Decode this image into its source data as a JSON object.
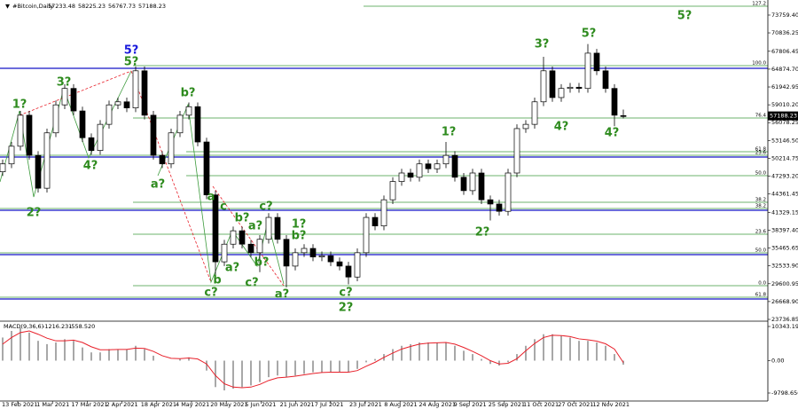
{
  "chart_data": {
    "type": "candlestick",
    "title": "#Bitcoin,Daily",
    "title_marker": "▼",
    "ohlc": [
      [
        48000,
        50000,
        47300,
        49300
      ],
      [
        49300,
        52900,
        48600,
        52200
      ],
      [
        52200,
        58000,
        51500,
        57300
      ],
      [
        57300,
        58000,
        50000,
        50700
      ],
      [
        50700,
        51400,
        44600,
        45300
      ],
      [
        45300,
        55100,
        44600,
        54400
      ],
      [
        54400,
        59700,
        53700,
        59000
      ],
      [
        59000,
        62400,
        58300,
        61700
      ],
      [
        61700,
        62400,
        57300,
        58000
      ],
      [
        58000,
        58700,
        52900,
        53600
      ],
      [
        53600,
        54300,
        50800,
        51500
      ],
      [
        51500,
        56500,
        50800,
        55800
      ],
      [
        55800,
        59700,
        55100,
        59000
      ],
      [
        59000,
        60200,
        58300,
        59500
      ],
      [
        59500,
        60200,
        57800,
        58500
      ],
      [
        58500,
        65300,
        57800,
        64600
      ],
      [
        64600,
        65300,
        56600,
        57300
      ],
      [
        57300,
        58000,
        50000,
        50700
      ],
      [
        50700,
        51400,
        48600,
        49300
      ],
      [
        49300,
        55100,
        48600,
        54400
      ],
      [
        54400,
        58000,
        53700,
        57300
      ],
      [
        57300,
        59400,
        56600,
        58700
      ],
      [
        58700,
        59400,
        52200,
        52900
      ],
      [
        52900,
        53600,
        43500,
        44200
      ],
      [
        44200,
        44900,
        30300,
        33200
      ],
      [
        33200,
        36800,
        32500,
        36100
      ],
      [
        36100,
        39000,
        35400,
        38300
      ],
      [
        38300,
        39000,
        35400,
        36100
      ],
      [
        36100,
        36800,
        34000,
        34700
      ],
      [
        34700,
        37600,
        31500,
        36900
      ],
      [
        36900,
        41200,
        36200,
        40500
      ],
      [
        40500,
        41200,
        36200,
        36900
      ],
      [
        36900,
        37600,
        29000,
        32500
      ],
      [
        32500,
        35400,
        31800,
        34700
      ],
      [
        34700,
        36100,
        34000,
        35400
      ],
      [
        35400,
        36100,
        33300,
        34000
      ],
      [
        34000,
        34900,
        33300,
        34200
      ],
      [
        34200,
        34900,
        32500,
        33200
      ],
      [
        33200,
        33900,
        31800,
        32500
      ],
      [
        32500,
        33200,
        29500,
        30700
      ],
      [
        30700,
        35400,
        30000,
        34700
      ],
      [
        34700,
        41200,
        34000,
        40500
      ],
      [
        40500,
        41200,
        38400,
        39100
      ],
      [
        39100,
        44100,
        38400,
        43400
      ],
      [
        43400,
        47100,
        42700,
        46400
      ],
      [
        46400,
        48500,
        45700,
        47800
      ],
      [
        47800,
        48500,
        46400,
        47100
      ],
      [
        47100,
        50000,
        46400,
        49300
      ],
      [
        49300,
        50000,
        47800,
        48500
      ],
      [
        48500,
        50000,
        47800,
        49300
      ],
      [
        49300,
        52900,
        48600,
        50700
      ],
      [
        50700,
        51400,
        46400,
        47100
      ],
      [
        47100,
        47800,
        44200,
        44900
      ],
      [
        44900,
        48500,
        44200,
        47800
      ],
      [
        47800,
        48500,
        42700,
        43400
      ],
      [
        43400,
        44100,
        40000,
        42700
      ],
      [
        42700,
        43400,
        40800,
        41500
      ],
      [
        41500,
        48500,
        40800,
        47800
      ],
      [
        47800,
        55800,
        47100,
        55100
      ],
      [
        55100,
        56500,
        54400,
        55800
      ],
      [
        55800,
        60200,
        55100,
        59500
      ],
      [
        59500,
        66900,
        58800,
        64600
      ],
      [
        64600,
        65300,
        59500,
        60200
      ],
      [
        60200,
        62400,
        59500,
        61700
      ],
      [
        61700,
        62600,
        61000,
        61900
      ],
      [
        61900,
        62600,
        61000,
        61700
      ],
      [
        61700,
        69000,
        61000,
        67500
      ],
      [
        67500,
        68200,
        63900,
        64600
      ],
      [
        64600,
        65300,
        61000,
        61700
      ],
      [
        61700,
        62400,
        55500,
        57300
      ],
      [
        57233.48,
        58225.23,
        56767.73,
        57188.23
      ]
    ],
    "ylim": [
      23736.85,
      75946
    ],
    "yticks": [
      {
        "value": 73759.4,
        "label": "73759.40"
      },
      70836.25,
      67806.45,
      {
        "value": 64874.7,
        "label": "64874.70"
      },
      61942.95,
      {
        "value": 59010.2,
        "label": "59010.20"
      },
      56078.25,
      {
        "value": 53146.5,
        "label": "53146.50"
      },
      50214.75,
      {
        "value": 47293.2,
        "label": "47293.20"
      },
      44361.45,
      41329.15,
      {
        "value": 38397.4,
        "label": "38397.40"
      },
      35465.65,
      {
        "value": 32533.9,
        "label": "32533.90"
      },
      29600.95,
      {
        "value": 26668.9,
        "label": "26668.90"
      },
      23736.85
    ],
    "date_labels": [
      "13 Feb 2021",
      "1 Mar 2021",
      "17 Mar 2021",
      "2 Apr 2021",
      "18 Apr 2021",
      "4 May 2021",
      "20 May 2021",
      "5 Jun 2021",
      "21 Jun 2021",
      "7 Jul 2021",
      "23 Jul 2021",
      "8 Aug 2021",
      "24 Aug 2021",
      "9 Sep 2021",
      "25 Sep 2021",
      "11 Oct 2021",
      "27 Oct 2021",
      "12 Nov 2021"
    ],
    "fib_labels": [
      "127.2",
      "100.0",
      "76.4",
      "61.8",
      "23.6",
      "50.0",
      "38.2",
      "38.2",
      "23.6",
      "50.0",
      "0.0",
      "61.8"
    ],
    "wave_labels": [
      "1?",
      "2?",
      "3?",
      "4?",
      "5?",
      "5?",
      "b?",
      "a?",
      "a",
      "c",
      "b?",
      "a?",
      "c?",
      "b",
      "a?",
      "b?",
      "c?",
      "c?",
      "a?",
      "1?",
      "b?",
      "c?",
      "2?",
      "1?",
      "2?",
      "3?",
      "4?",
      "5?",
      "4?",
      "5?"
    ],
    "macd": {
      "title": "MACD(9,36,6)",
      "signal_label": "-558.520",
      "histogram": [
        7000,
        9000,
        10000,
        8500,
        6000,
        5000,
        5500,
        6500,
        6000,
        4000,
        2500,
        2500,
        3500,
        3500,
        3500,
        4500,
        3500,
        1500,
        0,
        0,
        500,
        1000,
        0,
        -3000,
        -8000,
        -9000,
        -8500,
        -8000,
        -7500,
        -6500,
        -5000,
        -4500,
        -5000,
        -4500,
        -4000,
        -3500,
        -3500,
        -3500,
        -3500,
        -3500,
        -2500,
        -500,
        500,
        2000,
        3500,
        4500,
        5000,
        5500,
        5500,
        5500,
        5500,
        4500,
        3000,
        2000,
        500,
        -1000,
        -1500,
        -500,
        2000,
        4500,
        6500,
        8000,
        8000,
        7500,
        7000,
        6000,
        6000,
        5500,
        4500,
        2000,
        -1216.231
      ],
      "signal": [
        5000,
        7000,
        8500,
        9000,
        8000,
        6800,
        6000,
        6000,
        6200,
        5500,
        4200,
        3300,
        3300,
        3400,
        3400,
        3800,
        3700,
        2800,
        1500,
        700,
        600,
        800,
        500,
        -1000,
        -4500,
        -7000,
        -8000,
        -8200,
        -8000,
        -7200,
        -6000,
        -5200,
        -5000,
        -4700,
        -4300,
        -3900,
        -3600,
        -3500,
        -3500,
        -3500,
        -3000,
        -1700,
        -500,
        1000,
        2300,
        3500,
        4300,
        5000,
        5300,
        5400,
        5500,
        5000,
        4000,
        2800,
        1500,
        0,
        -1000,
        -800,
        600,
        3000,
        5200,
        7000,
        7700,
        7600,
        7300,
        6600,
        6300,
        5900,
        5100,
        3500,
        -558.52
      ],
      "signal_color": "#e8202a",
      "ylim": [
        -11679,
        11417
      ],
      "yticks": [
        10343.19,
        {
          "value": 0,
          "label": "0.00"
        },
        -9798.656
      ]
    }
  }
}
